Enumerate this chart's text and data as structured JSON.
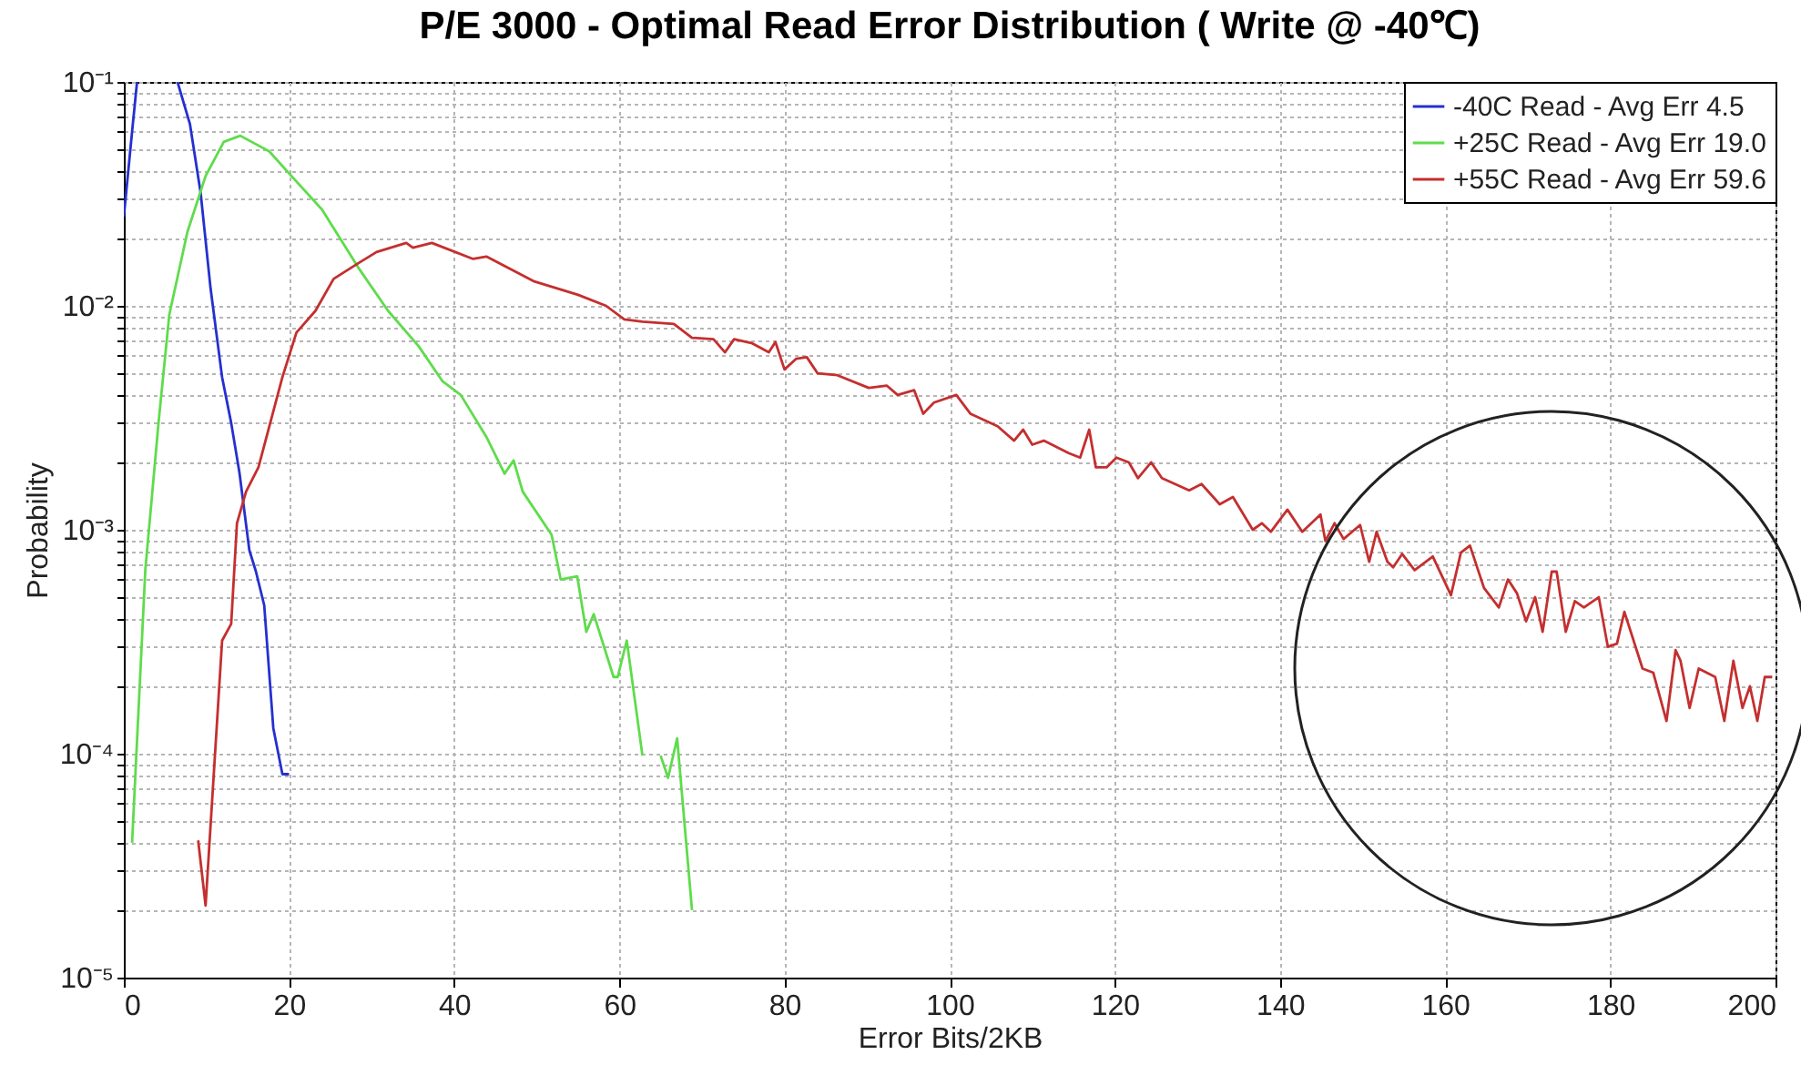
{
  "chart_data": {
    "type": "line",
    "title": "P/E 3000 - Optimal Read Error Distribution ( Write @ -40℃)",
    "xlabel": "Error Bits/2KB",
    "ylabel": "Probability",
    "xlim": [
      0,
      200
    ],
    "xticks": [
      0,
      20,
      40,
      60,
      80,
      100,
      120,
      140,
      160,
      180,
      200
    ],
    "ylim": [
      1e-05,
      0.1
    ],
    "yticks": [
      {
        "value": 1e-05,
        "label": "10⁻⁵"
      },
      {
        "value": 0.0001,
        "label": "10⁻⁴"
      },
      {
        "value": 0.001,
        "label": "10⁻³"
      },
      {
        "value": 0.01,
        "label": "10⁻²"
      },
      {
        "value": 0.1,
        "label": "10⁻¹"
      }
    ],
    "log": "y",
    "grid": true,
    "legend": "top right",
    "series": [
      {
        "name": "-40C Read - Avg Err 4.5",
        "color": "#2430d0",
        "x": [
          0,
          1,
          1.6,
          4,
          6.5,
          8,
          9.3,
          10.5,
          11.9,
          13,
          14,
          15.2,
          16,
          17,
          18.1,
          19.2,
          20
        ],
        "values": [
          0.025,
          0.06,
          0.1,
          null,
          0.1,
          0.065,
          0.032,
          0.012,
          0.0048,
          0.003,
          0.0018,
          0.00081,
          0.00065,
          0.00046,
          0.00013,
          8.1e-05,
          8.1e-05
        ]
      },
      {
        "name": "+25C Read - Avg Err 19.0",
        "color": "#5fdc4c",
        "x": [
          1,
          2.6,
          4.2,
          5.5,
          7.7,
          9.9,
          12.1,
          14.1,
          17.6,
          20.3,
          24,
          28.4,
          32,
          35.7,
          38.6,
          40.8,
          43.9,
          46.1,
          47.2,
          48.3,
          51.8,
          52.9,
          54.9,
          56,
          56.9,
          59.3,
          59.8,
          60.9,
          62.8,
          64,
          65,
          65.9,
          67,
          68.8
        ],
        "values": [
          4e-05,
          0.00066,
          0.003,
          0.0091,
          0.0214,
          0.038,
          0.054,
          0.0575,
          0.049,
          0.038,
          0.0269,
          0.0148,
          0.0095,
          0.0066,
          0.0046,
          0.004,
          0.0026,
          0.00178,
          0.00204,
          0.00148,
          0.00095,
          0.0006,
          0.00062,
          0.00035,
          0.00042,
          0.00022,
          0.00022,
          0.00032,
          9.8e-05,
          null,
          9.8e-05,
          7.8e-05,
          0.000117,
          2e-05
        ]
      },
      {
        "name": "+55C Read - Avg Err 59.6",
        "color": "#c42f2f",
        "x": [
          9,
          9.9,
          11.9,
          13,
          13.7,
          14.8,
          16.3,
          19.2,
          20.9,
          23.2,
          25.4,
          28.4,
          30.6,
          34.2,
          35,
          37.3,
          42.3,
          43.9,
          49.6,
          55,
          58.4,
          60.6,
          62.8,
          66.6,
          68.8,
          71.4,
          72.8,
          73.9,
          76.1,
          78.1,
          78.9,
          80,
          81.4,
          82.7,
          84,
          86.4,
          90.2,
          92.4,
          93.7,
          95.7,
          96.8,
          98.1,
          100.8,
          102.5,
          105.8,
          107.8,
          108.9,
          110,
          111.4,
          114.4,
          115.8,
          116.9,
          117.7,
          119,
          120.2,
          121.7,
          122.8,
          124.4,
          125.7,
          129,
          130.5,
          132.7,
          134.3,
          136.7,
          137.8,
          138.9,
          140.9,
          142.7,
          144.9,
          145.5,
          146.6,
          147.7,
          149.7,
          150.8,
          151.7,
          153,
          153.7,
          154.8,
          156.3,
          158.5,
          160.7,
          161.9,
          163,
          164.7,
          166.5,
          167.6,
          168.7,
          169.8,
          170.9,
          171.8,
          172.9,
          173.5,
          174.6,
          175.7,
          176.8,
          178.6,
          179.7,
          180.8,
          181.7,
          183.9,
          185.2,
          186.8,
          187.9,
          188.5,
          189.6,
          190.7,
          192.7,
          193.8,
          194.9,
          196,
          196.9,
          197.8,
          198.7,
          199.6
        ],
        "values": [
          4.1e-05,
          2.1e-05,
          0.00032,
          0.00038,
          0.00107,
          0.00148,
          0.0019,
          0.0048,
          0.0076,
          0.0095,
          0.0132,
          0.0155,
          0.0174,
          0.0191,
          0.0182,
          0.0191,
          0.0162,
          0.0166,
          0.0129,
          0.0112,
          0.01,
          0.0087,
          0.0085,
          0.0083,
          0.0072,
          0.0071,
          0.0062,
          0.0071,
          0.0068,
          0.0062,
          0.0069,
          0.0052,
          0.0058,
          0.0059,
          0.005,
          0.0049,
          0.0043,
          0.0044,
          0.004,
          0.0042,
          0.0033,
          0.0037,
          0.004,
          0.0033,
          0.0029,
          0.0025,
          0.0028,
          0.0024,
          0.0025,
          0.0022,
          0.0021,
          0.0028,
          0.0019,
          0.0019,
          0.0021,
          0.002,
          0.0017,
          0.002,
          0.0017,
          0.0015,
          0.0016,
          0.0013,
          0.0014,
          0.001,
          0.00107,
          0.00098,
          0.00123,
          0.00098,
          0.00117,
          0.00089,
          0.00107,
          0.00091,
          0.00105,
          0.00072,
          0.00098,
          0.00072,
          0.00068,
          0.00078,
          0.00066,
          0.00076,
          0.00051,
          0.00079,
          0.00085,
          0.00055,
          0.00045,
          0.0006,
          0.00052,
          0.00039,
          0.0005,
          0.00035,
          0.00065,
          0.00065,
          0.00035,
          0.00048,
          0.00045,
          0.0005,
          0.0003,
          0.00031,
          0.00043,
          0.00024,
          0.00023,
          0.00014,
          0.00029,
          0.00026,
          0.00016,
          0.00024,
          0.00022,
          0.00014,
          0.00026,
          0.00016,
          0.0002,
          0.00014,
          0.00022,
          0.00022
        ]
      }
    ]
  }
}
